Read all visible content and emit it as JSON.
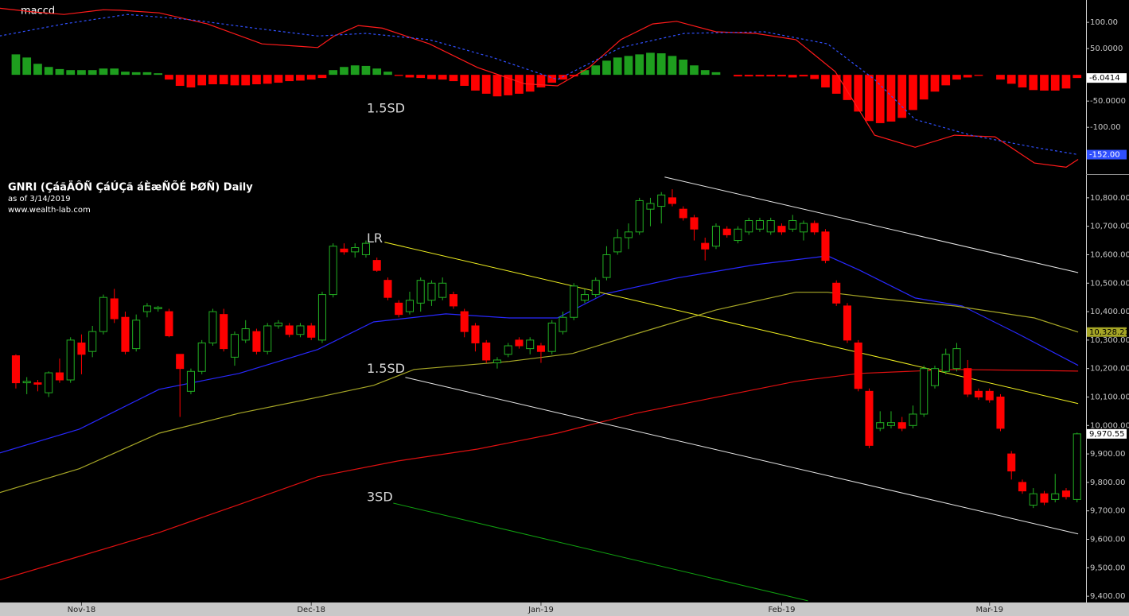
{
  "chart_data": [
    {
      "type": "macd",
      "title": "maccd",
      "xlim": [
        -1.45,
        97.82
      ],
      "ylim": [
        -183,
        135
      ],
      "yticks": [
        {
          "value": 100,
          "label": "100.00"
        },
        {
          "value": 50,
          "label": "50.0000"
        },
        {
          "value": -50,
          "label": "-50.0000"
        },
        {
          "value": -100,
          "label": "-100.00"
        }
      ],
      "histogram": {
        "up_color": "#1e9e1e",
        "down_color": "#ff0000",
        "last_label": "-6.0414",
        "values": [
          39,
          33,
          21,
          15,
          11,
          9,
          9,
          9,
          12,
          12,
          6,
          5,
          5,
          3,
          -9,
          -21,
          -24,
          -20,
          -18,
          -18,
          -20,
          -20,
          -18,
          -17,
          -15,
          -12,
          -11,
          -9,
          -6,
          9,
          15,
          18,
          17,
          12,
          6,
          -2,
          -5,
          -6,
          -8,
          -9,
          -12,
          -21,
          -30,
          -36,
          -41,
          -39,
          -36,
          -32,
          -24,
          -15,
          -9,
          -3,
          9,
          18,
          27,
          33,
          36,
          39,
          42,
          41,
          36,
          29,
          18,
          9,
          5,
          null,
          -3,
          -3,
          -3,
          -3,
          -3,
          -5,
          -3,
          -8,
          -24,
          -36,
          -48,
          -70,
          -88,
          -92,
          -89,
          -82,
          -67,
          -47,
          -32,
          -20,
          -9,
          -5,
          -2,
          null,
          -9,
          -17,
          -24,
          -29,
          -30,
          -30,
          -26,
          -6.0414
        ]
      },
      "series": [
        {
          "color": "#ff1a1a",
          "dash": false,
          "x": [
            -1.5,
            1.5,
            4.4,
            8,
            9.5,
            13.1,
            17.5,
            22.5,
            27.6,
            29.1,
            31.3,
            33.5,
            37.8,
            42.2,
            46.5,
            49.5,
            52.4,
            55.3,
            58.2,
            60.4,
            64,
            67.6,
            71.3,
            74.9,
            78.5,
            82.2,
            85.8,
            89.5,
            93.1,
            96,
            97.1
          ],
          "values": [
            127,
            120,
            115,
            124,
            123,
            118,
            97,
            59,
            52,
            74,
            94,
            89,
            59,
            14,
            -17,
            -21,
            14,
            67,
            97,
            102,
            82,
            79,
            67,
            6,
            -115,
            -138,
            -115,
            -118,
            -168,
            -176,
            -161
          ]
        },
        {
          "color": "#3050ff",
          "dash": true,
          "last_label": "-152.00",
          "x": [
            -1.5,
            4.4,
            10.2,
            16,
            21.8,
            27.6,
            32,
            37.8,
            43.6,
            49.5,
            55.3,
            61.1,
            68.4,
            74.2,
            78.5,
            82.2,
            87.3,
            93.1,
            97.1
          ],
          "values": [
            74,
            97,
            115,
            105,
            89,
            74,
            79,
            67,
            33,
            -9,
            52,
            79,
            82,
            59,
            -9,
            -85,
            -115,
            -138,
            -152
          ]
        }
      ]
    },
    {
      "type": "candlestick",
      "title": "GNRI (ÇáãÄÔÑ ÇáÚÇã áÈæÑÕÉ ÞØÑ) Daily",
      "subtitle": "as of 3/14/2019",
      "source": "www.wealth-lab.com",
      "xlim": [
        -1.45,
        97.82
      ],
      "xticks": [
        {
          "value": 6,
          "label": "Nov-18"
        },
        {
          "value": 27,
          "label": "Dec-18"
        },
        {
          "value": 48,
          "label": "Jan-19"
        },
        {
          "value": 70,
          "label": "Feb-19"
        },
        {
          "value": 89,
          "label": "Mar-19"
        }
      ],
      "ylim": [
        9378,
        10875
      ],
      "yticks": [
        {
          "value": 10800,
          "label": "10,800.00"
        },
        {
          "value": 10700,
          "label": "10,700.00"
        },
        {
          "value": 10600,
          "label": "10,600.00"
        },
        {
          "value": 10500,
          "label": "10,500.00"
        },
        {
          "value": 10400,
          "label": "10,400.00"
        },
        {
          "value": 10300,
          "label": "10,300.00"
        },
        {
          "value": 10200,
          "label": "10,200.00"
        },
        {
          "value": 10100,
          "label": "10,100.00"
        },
        {
          "value": 10000,
          "label": "10,000.00"
        },
        {
          "value": 9900,
          "label": "9,900.00"
        },
        {
          "value": 9800,
          "label": "9,800.00"
        },
        {
          "value": 9700,
          "label": "9,700.00"
        },
        {
          "value": 9600,
          "label": "9,600.00"
        },
        {
          "value": 9500,
          "label": "9,500.00"
        },
        {
          "value": 9400,
          "label": "9,400.00"
        }
      ],
      "up_color": "#22b022",
      "down_color": "#ff0000",
      "ohlc": {
        "open": [
          10245,
          10150,
          10150,
          10115,
          10185,
          10160,
          10290,
          10260,
          10330,
          10445,
          10380,
          10270,
          10400,
          10410,
          10400,
          10250,
          10120,
          10190,
          10290,
          10390,
          10240,
          10300,
          10330,
          10260,
          10350,
          10350,
          10320,
          10350,
          10300,
          10460,
          10620,
          10610,
          10600,
          10580,
          10510,
          10430,
          10400,
          10430,
          10440,
          10450,
          10460,
          10400,
          10350,
          10290,
          10220,
          10250,
          10300,
          10270,
          10280,
          10260,
          10330,
          10380,
          10440,
          10460,
          10520,
          10610,
          10660,
          10680,
          10760,
          10770,
          10800,
          10760,
          10730,
          10640,
          10630,
          10690,
          10650,
          10680,
          10690,
          10680,
          10700,
          10690,
          10680,
          10710,
          10680,
          10500,
          10420,
          10290,
          10120,
          9990,
          10000,
          10010,
          10000,
          10040,
          10140,
          10190,
          10200,
          10200,
          10120,
          10120,
          10100,
          9900,
          9800,
          9720,
          9760,
          9740,
          9770,
          9740
        ],
        "high": [
          10250,
          10170,
          10160,
          10190,
          10235,
          10310,
          10320,
          10350,
          10460,
          10480,
          10400,
          10390,
          10430,
          10420,
          10410,
          10250,
          10200,
          10300,
          10410,
          10410,
          10330,
          10370,
          10340,
          10360,
          10370,
          10360,
          10360,
          10360,
          10470,
          10640,
          10640,
          10640,
          10650,
          10590,
          10520,
          10440,
          10470,
          10520,
          10510,
          10520,
          10470,
          10410,
          10360,
          10300,
          10240,
          10290,
          10310,
          10310,
          10290,
          10370,
          10400,
          10500,
          10480,
          10520,
          10630,
          10690,
          10710,
          10800,
          10800,
          10820,
          10830,
          10770,
          10740,
          10660,
          10710,
          10700,
          10700,
          10730,
          10730,
          10730,
          10710,
          10740,
          10720,
          10720,
          10690,
          10510,
          10430,
          10300,
          10130,
          10050,
          10050,
          10030,
          10070,
          10210,
          10210,
          10270,
          10290,
          10230,
          10130,
          10130,
          10110,
          9910,
          9810,
          9780,
          9770,
          9830,
          9780,
          9975
        ],
        "low": [
          10130,
          10110,
          10120,
          10100,
          10150,
          10150,
          10180,
          10240,
          10320,
          10360,
          10250,
          10260,
          10380,
          10400,
          10310,
          10030,
          10110,
          10180,
          10280,
          10260,
          10210,
          10290,
          10250,
          10250,
          10340,
          10310,
          10310,
          10300,
          10290,
          10450,
          10600,
          10590,
          10590,
          10540,
          10440,
          10380,
          10390,
          10400,
          10420,
          10440,
          10410,
          10310,
          10260,
          10220,
          10200,
          10240,
          10270,
          10250,
          10220,
          10250,
          10320,
          10370,
          10430,
          10450,
          10510,
          10600,
          10620,
          10670,
          10700,
          10710,
          10770,
          10720,
          10650,
          10580,
          10620,
          10660,
          10640,
          10670,
          10680,
          10670,
          10670,
          10680,
          10650,
          10670,
          10570,
          10420,
          10290,
          10120,
          9920,
          9980,
          9990,
          9980,
          9990,
          10030,
          10130,
          10180,
          10190,
          10100,
          10090,
          10080,
          9980,
          9810,
          9760,
          9710,
          9720,
          9730,
          9740,
          9730
        ],
        "close": [
          10150,
          10155,
          10145,
          10185,
          10160,
          10300,
          10250,
          10330,
          10450,
          10375,
          10260,
          10370,
          10420,
          10415,
          10315,
          10200,
          10190,
          10290,
          10400,
          10270,
          10320,
          10340,
          10260,
          10350,
          10360,
          10320,
          10350,
          10310,
          10460,
          10630,
          10610,
          10625,
          10640,
          10545,
          10450,
          10390,
          10440,
          10510,
          10500,
          10500,
          10420,
          10330,
          10290,
          10230,
          10230,
          10280,
          10280,
          10300,
          10260,
          10360,
          10380,
          10490,
          10460,
          10510,
          10600,
          10660,
          10680,
          10790,
          10780,
          10810,
          10780,
          10730,
          10690,
          10620,
          10700,
          10670,
          10690,
          10720,
          10720,
          10720,
          10680,
          10720,
          10710,
          10680,
          10580,
          10430,
          10300,
          10130,
          9930,
          10010,
          10010,
          9990,
          10040,
          10200,
          10200,
          10250,
          10270,
          10110,
          10100,
          10090,
          9990,
          9840,
          9770,
          9760,
          9730,
          9760,
          9750,
          9970.55
        ],
        "last_label": "9,970.55"
      },
      "series": [
        {
          "color": "#2828ff",
          "x": [
            -1.5,
            5.8,
            13.1,
            20.4,
            27.6,
            32.7,
            39.3,
            45.1,
            49.5,
            53.8,
            60.4,
            67.6,
            74.2,
            77.1,
            82.2,
            86.5,
            91.6,
            97.1
          ],
          "values": [
            9903,
            9987,
            10127,
            10183,
            10267,
            10364,
            10392,
            10378,
            10378,
            10462,
            10518,
            10565,
            10596,
            10546,
            10448,
            10420,
            10322,
            10211
          ]
        },
        {
          "color": "#a6a626",
          "last_label": "10,328.21",
          "x": [
            -1.5,
            5.8,
            13.1,
            20.4,
            27.6,
            32.7,
            36.4,
            45.1,
            50.9,
            56.7,
            64,
            71.3,
            74.2,
            78.5,
            85.8,
            93.1,
            97.1
          ],
          "values": [
            9764,
            9848,
            9973,
            10043,
            10099,
            10141,
            10197,
            10225,
            10253,
            10322,
            10406,
            10468,
            10468,
            10448,
            10420,
            10378,
            10328.21
          ]
        },
        {
          "color": "#e01010",
          "x": [
            -1.5,
            5.8,
            13.1,
            20.4,
            27.6,
            34.9,
            42.2,
            49.5,
            56.7,
            64,
            71.3,
            77.1,
            85.8,
            97.1
          ],
          "values": [
            9457,
            9540,
            9624,
            9722,
            9820,
            9875,
            9917,
            9973,
            10043,
            10099,
            10155,
            10183,
            10197,
            10191
          ]
        }
      ],
      "channel": [
        {
          "name": "LR",
          "color": "#f0f020",
          "x": [
            33.7,
            97.1
          ],
          "values": [
            10644,
            10077
          ]
        },
        {
          "name": "1.5SD",
          "color": "#e6e6e6",
          "x": [
            59.3,
            97.1
          ],
          "values": [
            10873,
            10537
          ]
        },
        {
          "name": "1.5SD",
          "color": "#e6e6e6",
          "x": [
            35.6,
            97.1
          ],
          "values": [
            10169,
            9619
          ]
        },
        {
          "name": "3SD",
          "color": "#10a010",
          "x": [
            34.5,
            72.4
          ],
          "values": [
            9727,
            9384
          ]
        }
      ]
    }
  ]
}
